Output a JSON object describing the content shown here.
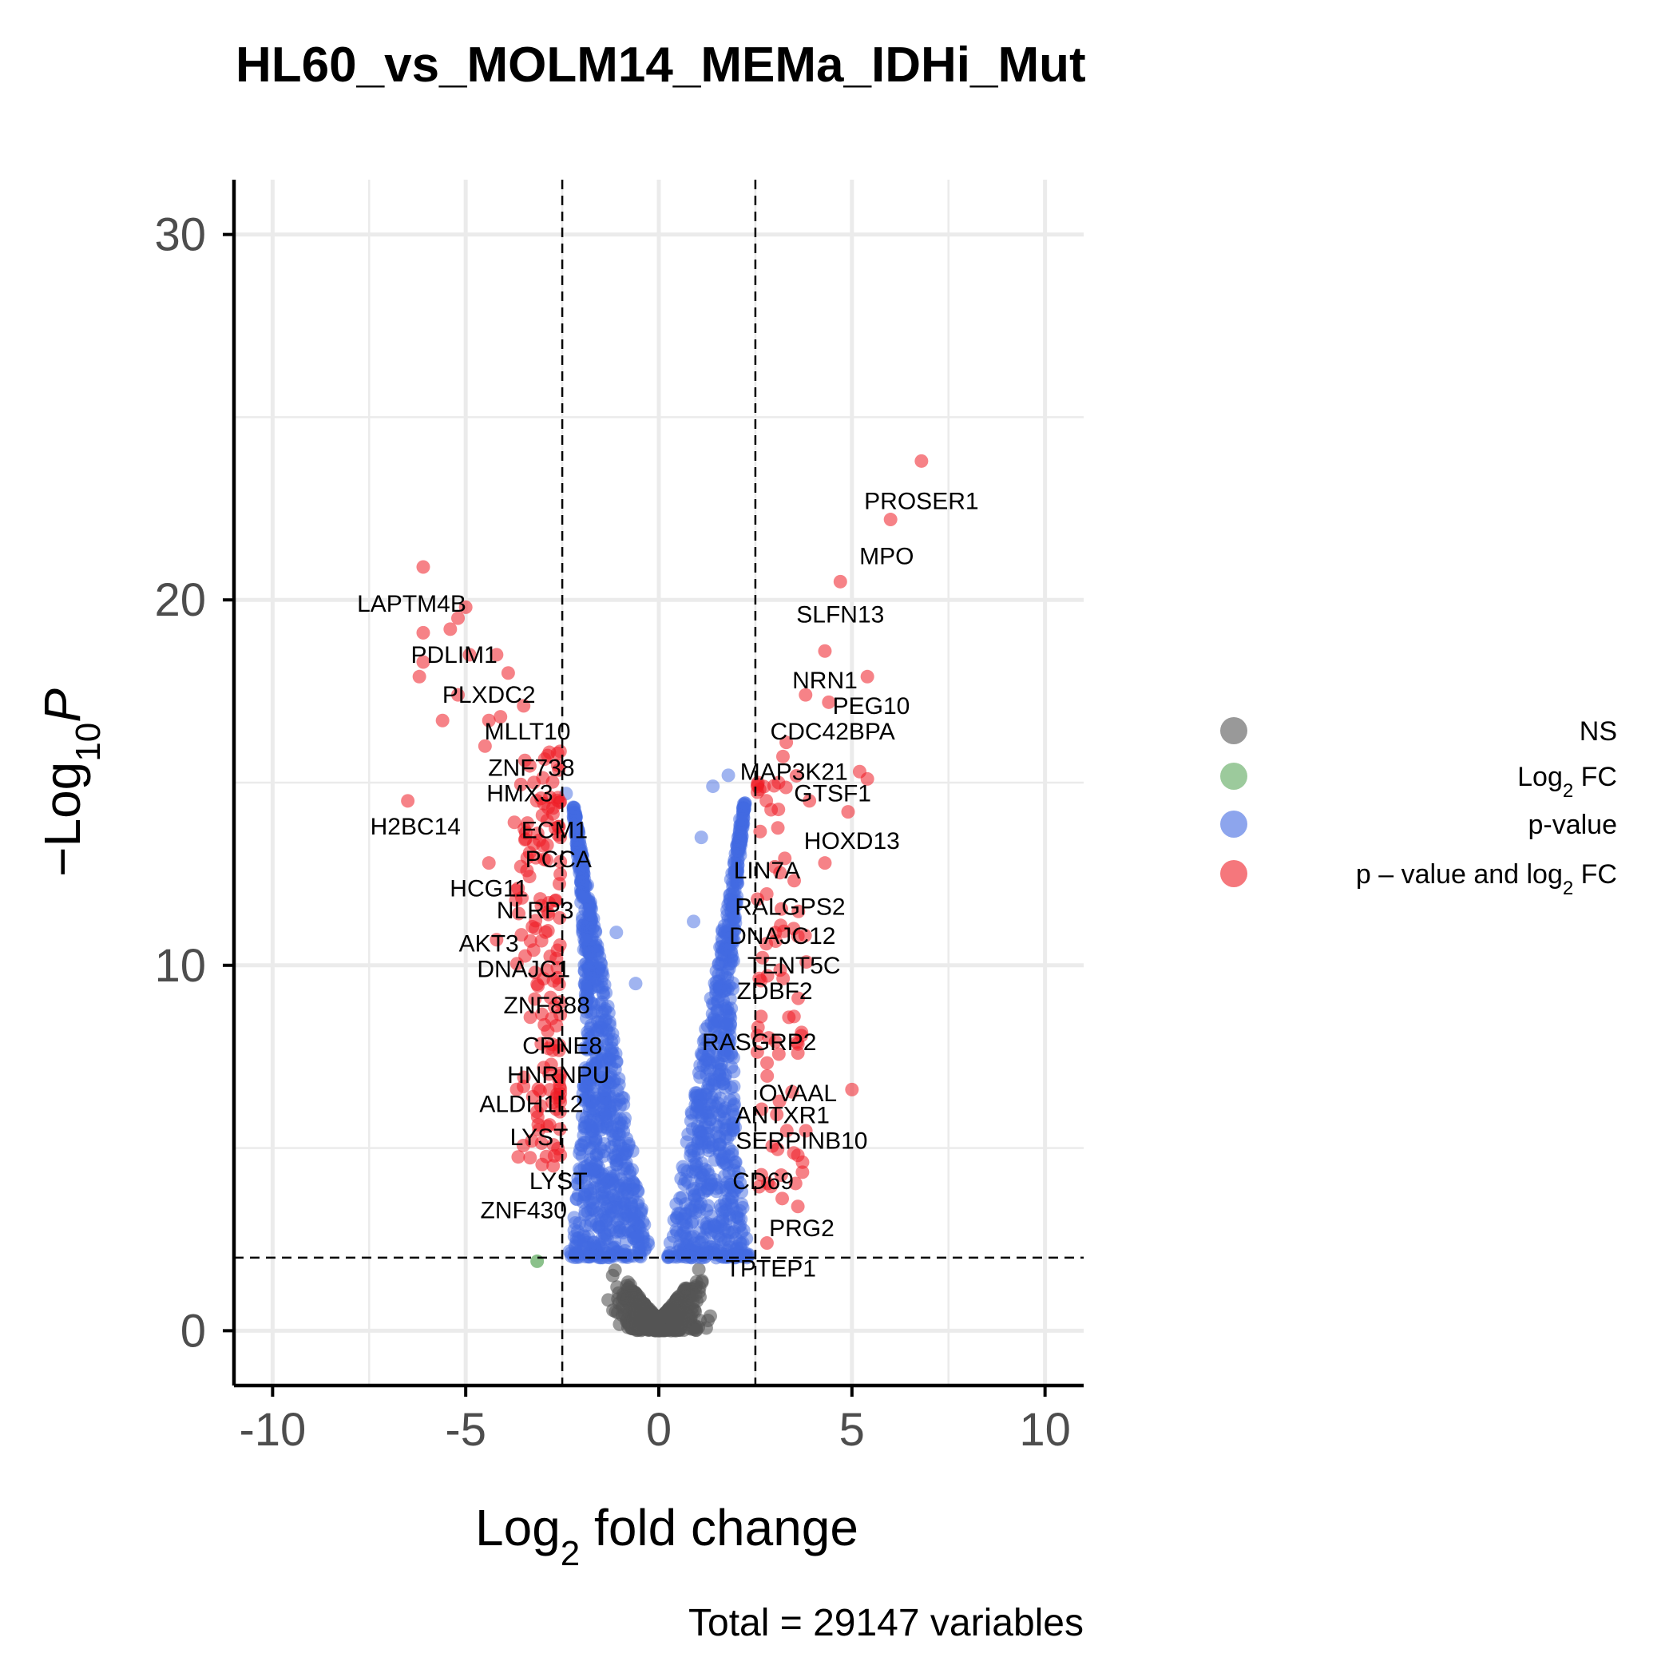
{
  "chart_data": {
    "type": "scatter",
    "title": "HL60_vs_MOLM14_MEMa_IDHi_Mut",
    "xlabel": {
      "prefix": "Log",
      "sub": "2",
      "suffix": " fold change"
    },
    "ylabel": {
      "prefix": "−Log",
      "sub": "10",
      "italic": "P"
    },
    "caption": "Total = 29147 variables",
    "xlim": [
      -11,
      11
    ],
    "ylim": [
      -1.5,
      31.5
    ],
    "xticks": [
      -10,
      -5,
      0,
      5,
      10
    ],
    "xtick_labels": [
      "-10",
      "-5",
      "0",
      "5",
      "10"
    ],
    "yticks": [
      0,
      10,
      20,
      30
    ],
    "ytick_labels": [
      "0",
      "10",
      "20",
      "30"
    ],
    "cutoffs": {
      "log2fc": 2.5,
      "neglog10p": 2
    },
    "grid": true,
    "legend_position": "right",
    "legend": [
      {
        "key": "NS",
        "label": "NS",
        "color": "#555555"
      },
      {
        "key": "FC",
        "label_prefix": "Log",
        "label_sub": "2",
        "label_suffix": " FC",
        "color": "#5aa65a"
      },
      {
        "key": "P",
        "label": "p-value",
        "color": "#4169e1"
      },
      {
        "key": "PFC",
        "label_prefix": "p – value and log",
        "label_sub": "2",
        "label_suffix": " FC",
        "color": "#ee1c25"
      }
    ],
    "series": [
      {
        "name": "NS",
        "color": "#555555"
      },
      {
        "name": "Log2 FC",
        "color": "#5aa65a",
        "points": [
          [
            -3.15,
            1.9
          ]
        ]
      },
      {
        "name": "p-value",
        "color": "#4169e1"
      },
      {
        "name": "p - value and log2 FC",
        "color": "#ee1c25",
        "points": [
          [
            6.8,
            23.8
          ],
          [
            6.0,
            22.2
          ],
          [
            4.7,
            20.5
          ],
          [
            4.3,
            18.6
          ],
          [
            5.4,
            17.9
          ],
          [
            3.8,
            17.4
          ],
          [
            4.4,
            17.2
          ],
          [
            3.3,
            16.1
          ],
          [
            5.2,
            15.3
          ],
          [
            5.4,
            15.1
          ],
          [
            3.1,
            15.0
          ],
          [
            3.9,
            14.5
          ],
          [
            4.9,
            14.2
          ],
          [
            4.3,
            12.8
          ],
          [
            3.6,
            10.8
          ],
          [
            3.5,
            8.6
          ],
          [
            3.6,
            7.6
          ],
          [
            5.0,
            6.6
          ],
          [
            3.6,
            4.8
          ],
          [
            3.6,
            3.4
          ],
          [
            2.8,
            2.4
          ],
          [
            -6.1,
            20.9
          ],
          [
            -6.1,
            19.1
          ],
          [
            -5.0,
            19.8
          ],
          [
            -5.4,
            19.2
          ],
          [
            -5.2,
            19.5
          ],
          [
            -4.9,
            18.5
          ],
          [
            -4.2,
            18.5
          ],
          [
            -6.1,
            18.3
          ],
          [
            -6.2,
            17.9
          ],
          [
            -3.9,
            18.0
          ],
          [
            -5.2,
            17.4
          ],
          [
            -3.5,
            17.1
          ],
          [
            -5.6,
            16.7
          ],
          [
            -4.4,
            16.7
          ],
          [
            -4.1,
            16.8
          ],
          [
            -4.5,
            16.0
          ],
          [
            -6.5,
            14.5
          ],
          [
            -4.4,
            12.8
          ],
          [
            -4.2,
            10.7
          ]
        ]
      }
    ],
    "annotations": [
      {
        "text": "PROSER1",
        "x": 6.8,
        "y": 22.7
      },
      {
        "text": "MPO",
        "x": 5.9,
        "y": 21.2
      },
      {
        "text": "SLFN13",
        "x": 4.7,
        "y": 19.6
      },
      {
        "text": "NRN1",
        "x": 4.3,
        "y": 17.8
      },
      {
        "text": "PEG10",
        "x": 5.5,
        "y": 17.1
      },
      {
        "text": "CDC42BPA",
        "x": 4.5,
        "y": 16.4
      },
      {
        "text": "MAP3K21",
        "x": 3.5,
        "y": 15.3
      },
      {
        "text": "GTSF1",
        "x": 4.5,
        "y": 14.7
      },
      {
        "text": "HOXD13",
        "x": 5.0,
        "y": 13.4
      },
      {
        "text": "LIN7A",
        "x": 2.8,
        "y": 12.6
      },
      {
        "text": "RALGPS2",
        "x": 3.4,
        "y": 11.6
      },
      {
        "text": "DNAJC12",
        "x": 3.2,
        "y": 10.8
      },
      {
        "text": "TENT5C",
        "x": 3.5,
        "y": 10.0
      },
      {
        "text": "ZDBF2",
        "x": 3.0,
        "y": 9.3
      },
      {
        "text": "RASGRP2",
        "x": 2.6,
        "y": 7.9
      },
      {
        "text": "OVAAL",
        "x": 3.6,
        "y": 6.5
      },
      {
        "text": "ANTXR1",
        "x": 3.2,
        "y": 5.9
      },
      {
        "text": "SERPINB10",
        "x": 3.7,
        "y": 5.2
      },
      {
        "text": "CD69",
        "x": 2.7,
        "y": 4.1
      },
      {
        "text": "PRG2",
        "x": 3.7,
        "y": 2.8
      },
      {
        "text": "TPTEP1",
        "x": 2.9,
        "y": 1.7
      },
      {
        "text": "LAPTM4B",
        "x": -6.4,
        "y": 19.9
      },
      {
        "text": "PDLIM1",
        "x": -5.3,
        "y": 18.5
      },
      {
        "text": "PLXDC2",
        "x": -4.4,
        "y": 17.4
      },
      {
        "text": "MLLT10",
        "x": -3.4,
        "y": 16.4
      },
      {
        "text": "ZNF738",
        "x": -3.3,
        "y": 15.4
      },
      {
        "text": "HMX3",
        "x": -3.6,
        "y": 14.7
      },
      {
        "text": "H2BC14",
        "x": -6.3,
        "y": 13.8
      },
      {
        "text": "ECM1",
        "x": -2.7,
        "y": 13.7
      },
      {
        "text": "PCCA",
        "x": -2.6,
        "y": 12.9
      },
      {
        "text": "HCG11",
        "x": -4.4,
        "y": 12.1
      },
      {
        "text": "NLRP3",
        "x": -3.2,
        "y": 11.5
      },
      {
        "text": "AKT3",
        "x": -4.4,
        "y": 10.6
      },
      {
        "text": "DNAJC1",
        "x": -3.5,
        "y": 9.9
      },
      {
        "text": "ZNF888",
        "x": -2.9,
        "y": 8.9
      },
      {
        "text": "CPNE8",
        "x": -2.5,
        "y": 7.8
      },
      {
        "text": "HNRNPU",
        "x": -2.6,
        "y": 7.0
      },
      {
        "text": "ALDH1L2",
        "x": -3.3,
        "y": 6.2
      },
      {
        "text": "LYST",
        "x": -3.1,
        "y": 5.3
      },
      {
        "text": "LYST",
        "x": -2.6,
        "y": 4.1
      },
      {
        "text": "ZNF430",
        "x": -3.5,
        "y": 3.3
      }
    ]
  }
}
